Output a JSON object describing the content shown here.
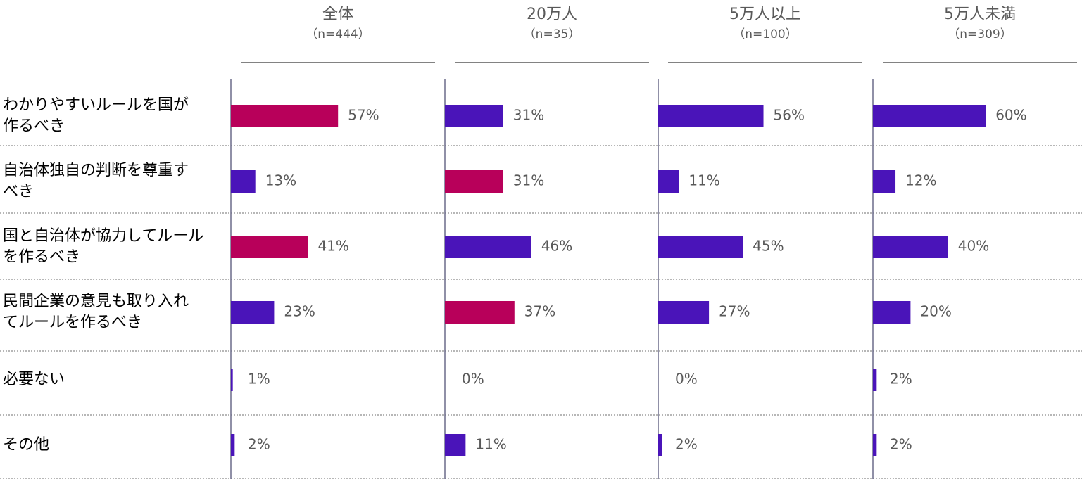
{
  "chart_data": {
    "type": "bar",
    "categories": [
      "わかりやすいルールを国が\n作るべき",
      "自治体独自の判断を尊重す\nべき",
      "国と自治体が協力してルール\nを作るべき",
      "民間企業の意見も取り入れ\nてルールを作るべき",
      "必要ない",
      "その他"
    ],
    "xlim": [
      0,
      100
    ],
    "series": [
      {
        "name": "全体",
        "subtitle": "（n=444）",
        "values": [
          57,
          13,
          41,
          23,
          1,
          2
        ],
        "value_labels": [
          "57%",
          "13%",
          "41%",
          "23%",
          "1%",
          "2%"
        ],
        "colors": [
          "#b8005a",
          "#4a14b9",
          "#b8005a",
          "#4a14b9",
          "#4a14b9",
          "#4a14b9"
        ]
      },
      {
        "name": "20万人",
        "subtitle": "（n=35）",
        "values": [
          31,
          31,
          46,
          37,
          0,
          11
        ],
        "value_labels": [
          "31%",
          "31%",
          "46%",
          "37%",
          "0%",
          "11%"
        ],
        "colors": [
          "#4a14b9",
          "#b8005a",
          "#4a14b9",
          "#b8005a",
          "#4a14b9",
          "#4a14b9"
        ]
      },
      {
        "name": "5万人以上",
        "subtitle": "（n=100）",
        "values": [
          56,
          11,
          45,
          27,
          0,
          2
        ],
        "value_labels": [
          "56%",
          "11%",
          "45%",
          "27%",
          "0%",
          "2%"
        ],
        "colors": [
          "#4a14b9",
          "#4a14b9",
          "#4a14b9",
          "#4a14b9",
          "#4a14b9",
          "#4a14b9"
        ]
      },
      {
        "name": "5万人未満",
        "subtitle": "（n=309）",
        "values": [
          60,
          12,
          40,
          20,
          2,
          2
        ],
        "value_labels": [
          "60%",
          "12%",
          "40%",
          "20%",
          "2%",
          "2%"
        ],
        "colors": [
          "#4a14b9",
          "#4a14b9",
          "#4a14b9",
          "#4a14b9",
          "#4a14b9",
          "#4a14b9"
        ]
      }
    ]
  }
}
